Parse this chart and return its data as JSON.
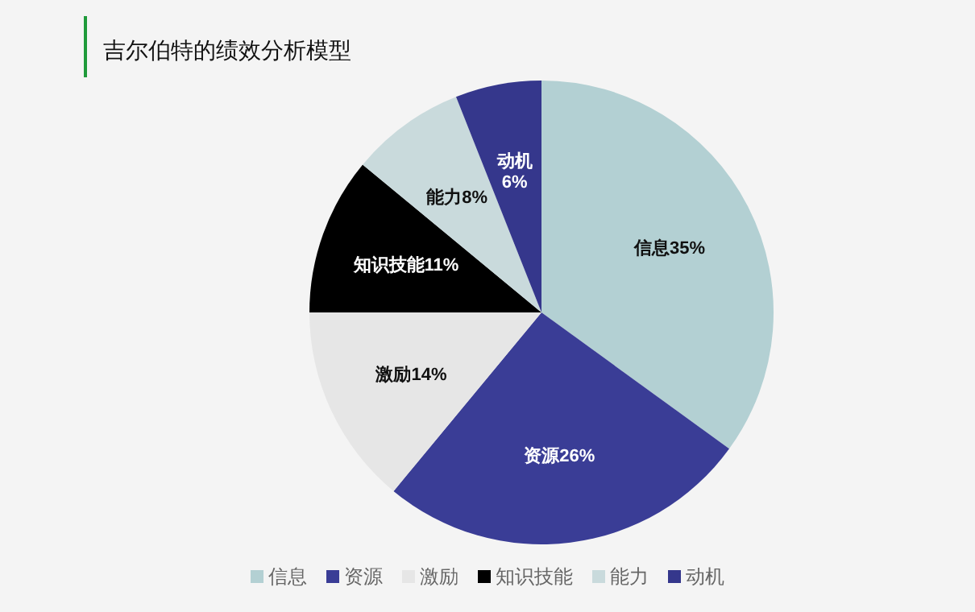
{
  "chart_data": {
    "type": "pie",
    "title": "吉尔伯特的绩效分析模型",
    "categories": [
      "信息",
      "资源",
      "激励",
      "知识技能",
      "能力",
      "动机"
    ],
    "values": [
      35,
      26,
      14,
      11,
      8,
      6
    ],
    "colors": [
      "#b3d0d3",
      "#3a3d96",
      "#e6e6e6",
      "#000000",
      "#c9dadc",
      "#35378c"
    ],
    "value_labels": [
      "35%",
      "26%",
      "14%",
      "11%",
      "8%",
      "6%"
    ],
    "legend": "bottom"
  }
}
